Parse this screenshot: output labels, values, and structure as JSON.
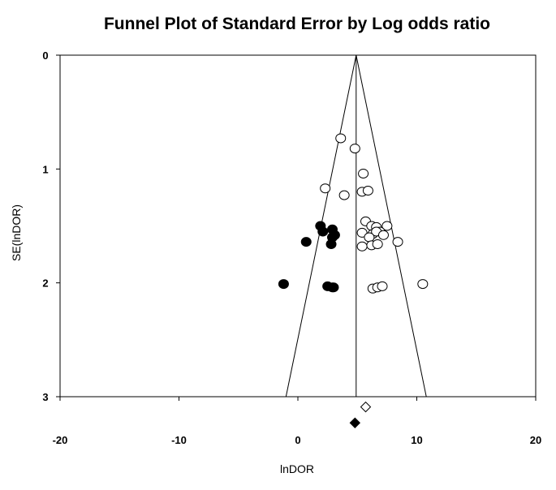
{
  "chart_data": {
    "type": "scatter",
    "title": "Funnel Plot of Standard Error by Log odds ratio",
    "xlabel": "lnDOR",
    "ylabel": "SE(lnDOR)",
    "xlim": [
      -20,
      20
    ],
    "ylim": [
      0,
      3
    ],
    "y_inverted": true,
    "grid": false,
    "x_ticks": [
      -20,
      -10,
      0,
      10,
      20
    ],
    "y_ticks": [
      0,
      1,
      2,
      3
    ],
    "pooled_estimate": 4.9,
    "funnel": {
      "apex": [
        4.9,
        0
      ],
      "base_left": [
        -1.0,
        3
      ],
      "base_right": [
        10.8,
        3
      ]
    },
    "series": [
      {
        "marker": "open-circle",
        "color": "#000000",
        "points": [
          [
            3.6,
            0.73
          ],
          [
            4.8,
            0.82
          ],
          [
            5.5,
            1.04
          ],
          [
            2.3,
            1.17
          ],
          [
            5.4,
            1.2
          ],
          [
            5.9,
            1.19
          ],
          [
            3.9,
            1.23
          ],
          [
            5.7,
            1.46
          ],
          [
            6.2,
            1.5
          ],
          [
            6.6,
            1.51
          ],
          [
            7.5,
            1.5
          ],
          [
            6.9,
            1.55
          ],
          [
            5.4,
            1.56
          ],
          [
            6.3,
            1.57
          ],
          [
            6.6,
            1.55
          ],
          [
            7.2,
            1.58
          ],
          [
            6.0,
            1.6
          ],
          [
            8.4,
            1.64
          ],
          [
            6.2,
            1.67
          ],
          [
            6.7,
            1.66
          ],
          [
            5.4,
            1.68
          ],
          [
            6.3,
            2.05
          ],
          [
            6.7,
            2.04
          ],
          [
            7.1,
            2.03
          ],
          [
            10.5,
            2.01
          ]
        ]
      },
      {
        "marker": "filled-circle",
        "color": "#000000",
        "points": [
          [
            1.9,
            1.5
          ],
          [
            2.1,
            1.55
          ],
          [
            2.9,
            1.53
          ],
          [
            3.1,
            1.58
          ],
          [
            2.9,
            1.6
          ],
          [
            0.7,
            1.64
          ],
          [
            2.8,
            1.66
          ],
          [
            -1.2,
            2.01
          ],
          [
            2.5,
            2.03
          ],
          [
            2.9,
            2.04
          ],
          [
            3.0,
            2.04
          ]
        ]
      }
    ],
    "summary_markers": [
      {
        "marker": "open-diamond",
        "x": 5.7,
        "y": 3.09
      },
      {
        "marker": "filled-diamond",
        "x": 4.8,
        "y": 3.23
      }
    ]
  }
}
